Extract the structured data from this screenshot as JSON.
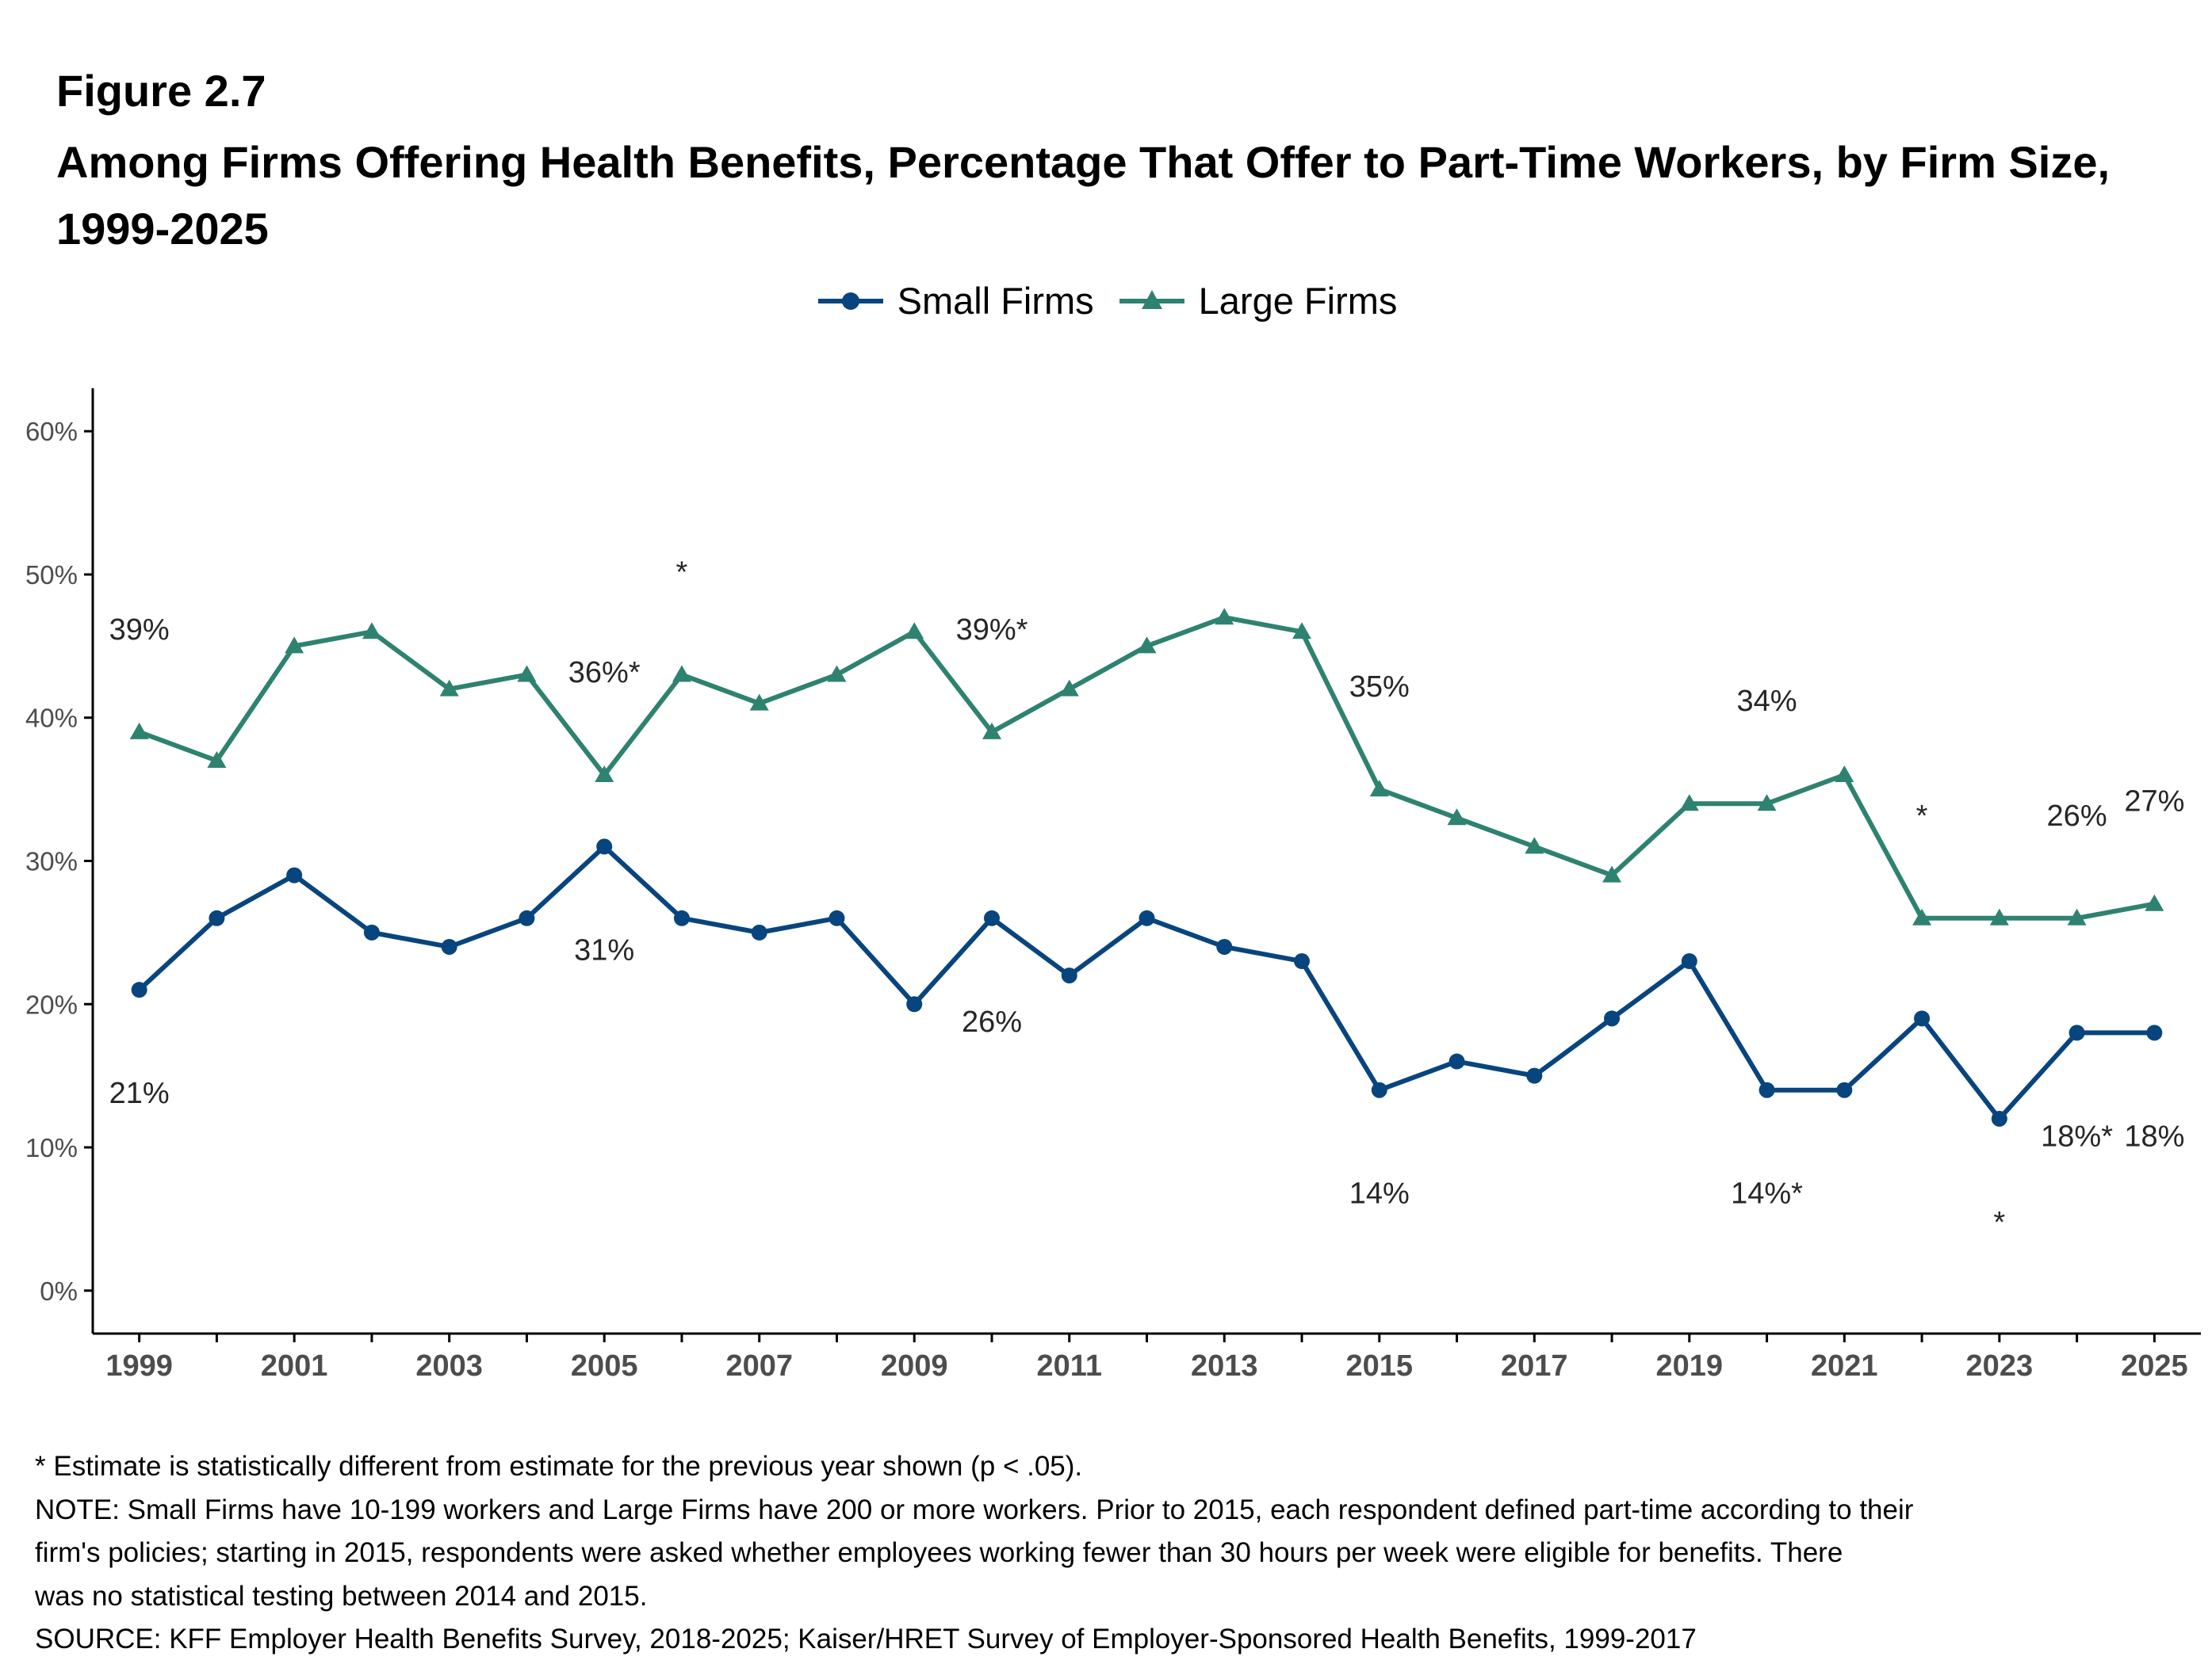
{
  "figure": {
    "number": "Figure 2.7",
    "title": "Among Firms Offering Health Benefits, Percentage That Offer to Part-Time Workers, by Firm Size, 1999-2025"
  },
  "colors": {
    "small_firms": "#08457e",
    "large_firms": "#2e8270",
    "axis": "#000000",
    "tick_text": "#4d4d4d",
    "label_text": "#262626"
  },
  "chart_data": {
    "type": "line",
    "x": [
      1999,
      2000,
      2001,
      2002,
      2003,
      2004,
      2005,
      2006,
      2007,
      2008,
      2009,
      2010,
      2011,
      2012,
      2013,
      2014,
      2015,
      2016,
      2017,
      2018,
      2019,
      2020,
      2021,
      2022,
      2023,
      2024,
      2025
    ],
    "series": [
      {
        "name": "Small Firms",
        "marker": "circle",
        "values": [
          21,
          26,
          29,
          25,
          24,
          26,
          31,
          26,
          25,
          26,
          20,
          26,
          22,
          26,
          24,
          23,
          14,
          16,
          15,
          19,
          23,
          14,
          14,
          19,
          12,
          18,
          18
        ]
      },
      {
        "name": "Large Firms",
        "marker": "triangle",
        "values": [
          39,
          37,
          45,
          46,
          42,
          43,
          36,
          43,
          41,
          43,
          46,
          39,
          42,
          45,
          47,
          46,
          35,
          33,
          31,
          29,
          34,
          34,
          36,
          26,
          26,
          26,
          27
        ]
      }
    ],
    "x_tick_labels": [
      "1999",
      "2001",
      "2003",
      "2005",
      "2007",
      "2009",
      "2011",
      "2013",
      "2015",
      "2017",
      "2019",
      "2021",
      "2023",
      "2025"
    ],
    "y_tick_labels": [
      "0%",
      "10%",
      "20%",
      "30%",
      "40%",
      "50%",
      "60%"
    ],
    "ylim": [
      -3,
      63
    ],
    "xlim": [
      1998.4,
      2025.6
    ],
    "grid": false,
    "legend_position": "top-center",
    "data_labels": [
      {
        "series": "Large Firms",
        "year": 1999,
        "text": "39%",
        "placement": "above"
      },
      {
        "series": "Large Firms",
        "year": 2005,
        "text": "36%*",
        "placement": "above"
      },
      {
        "series": "Large Firms",
        "year": 2006,
        "text": "*",
        "placement": "above"
      },
      {
        "series": "Large Firms",
        "year": 2010,
        "text": "39%*",
        "placement": "above"
      },
      {
        "series": "Large Firms",
        "year": 2015,
        "text": "35%",
        "placement": "above"
      },
      {
        "series": "Large Firms",
        "year": 2020,
        "text": "34%",
        "placement": "above"
      },
      {
        "series": "Large Firms",
        "year": 2022,
        "text": "*",
        "placement": "above"
      },
      {
        "series": "Large Firms",
        "year": 2024,
        "text": "26%",
        "placement": "above"
      },
      {
        "series": "Large Firms",
        "year": 2025,
        "text": "27%",
        "placement": "above"
      },
      {
        "series": "Small Firms",
        "year": 1999,
        "text": "21%",
        "placement": "below"
      },
      {
        "series": "Small Firms",
        "year": 2005,
        "text": "31%",
        "placement": "below"
      },
      {
        "series": "Small Firms",
        "year": 2010,
        "text": "26%",
        "placement": "below"
      },
      {
        "series": "Small Firms",
        "year": 2015,
        "text": "14%",
        "placement": "below"
      },
      {
        "series": "Small Firms",
        "year": 2020,
        "text": "14%*",
        "placement": "below"
      },
      {
        "series": "Small Firms",
        "year": 2023,
        "text": "*",
        "placement": "below"
      },
      {
        "series": "Small Firms",
        "year": 2024,
        "text": "18%*",
        "placement": "below"
      },
      {
        "series": "Small Firms",
        "year": 2025,
        "text": "18%",
        "placement": "below"
      }
    ]
  },
  "footnotes": {
    "line1": "* Estimate is statistically different from estimate for the previous year shown (p < .05).",
    "line2": "NOTE: Small Firms have 10-199 workers and Large Firms have 200 or more workers. Prior to 2015, each respondent defined part-time according to their",
    "line3": "firm's policies; starting in 2015, respondents were asked whether employees working fewer than 30 hours per week were eligible for benefits. There",
    "line4": "was no statistical testing between 2014 and 2015.",
    "line5": "SOURCE: KFF Employer Health Benefits Survey, 2018-2025; Kaiser/HRET Survey of Employer-Sponsored Health Benefits, 1999-2017"
  }
}
